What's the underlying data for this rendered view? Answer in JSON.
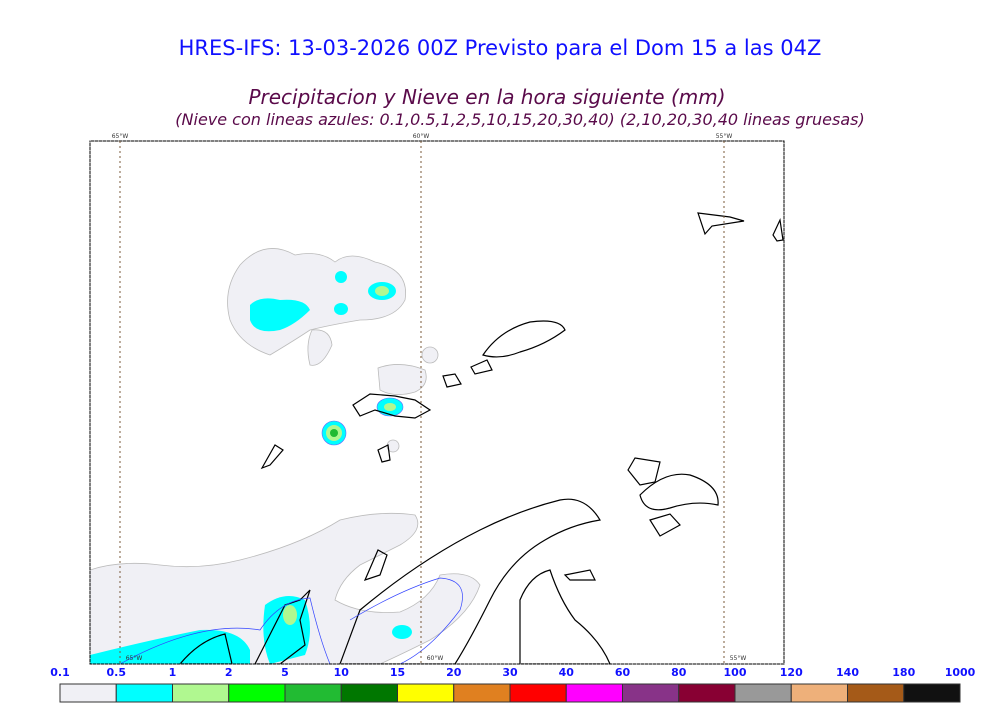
{
  "header": {
    "title": "HRES-IFS: 13-03-2026 00Z Previsto para el Dom 15 a las 04Z",
    "subtitle": "Precipitacion y Nieve en la hora siguiente (mm)",
    "note": "(Nieve con lineas azules: 0.1,0.5,1,2,5,10,15,20,30,40)  (2,10,20,30,40 lineas gruesas)"
  },
  "map": {
    "longitude_labels": [
      "65°W",
      "60°W",
      "55°W"
    ]
  },
  "colorbar": {
    "labels": [
      "0.1",
      "0.5",
      "1",
      "2",
      "5",
      "10",
      "15",
      "20",
      "30",
      "40",
      "60",
      "80",
      "100",
      "120",
      "140",
      "180",
      "1000"
    ],
    "colors": [
      "#f0f0f5",
      "#00ffff",
      "#b0f890",
      "#00ff00",
      "#22bb33",
      "#007700",
      "#ffff00",
      "#e08020",
      "#ff0000",
      "#ff00ff",
      "#883388",
      "#880033",
      "#999999",
      "#eeb07a",
      "#a55a18",
      "#111111"
    ]
  }
}
